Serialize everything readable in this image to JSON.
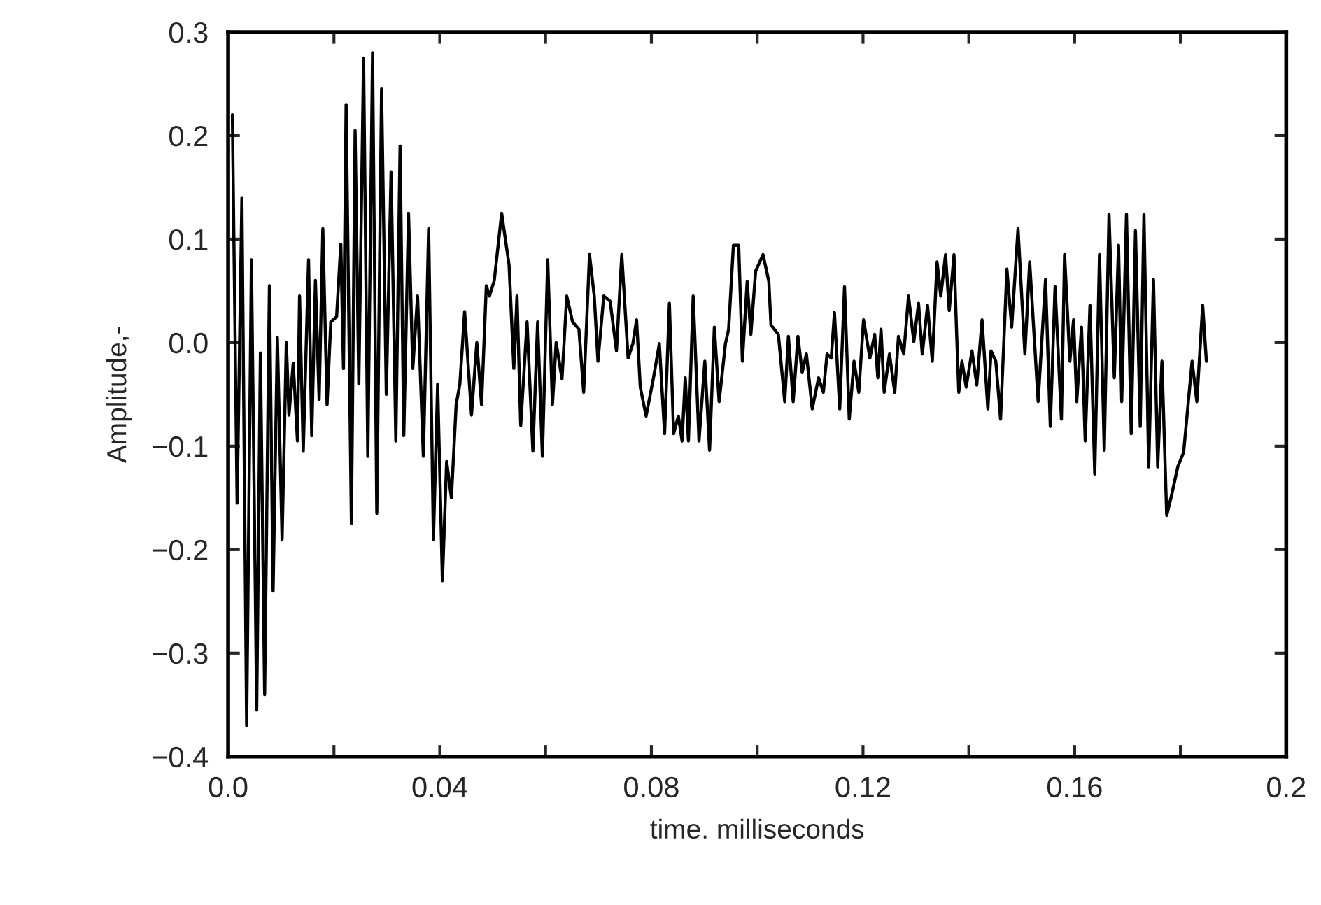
{
  "chart_data": {
    "type": "line",
    "xlabel": "time. milliseconds",
    "ylabel": "Amplitude,-",
    "xlim": [
      0,
      0.2
    ],
    "ylim": [
      -0.4,
      0.3
    ],
    "xticks": [
      {
        "value": 0,
        "label": "0.0"
      },
      {
        "value": 0.02,
        "label": null
      },
      {
        "value": 0.04,
        "label": "0.04"
      },
      {
        "value": 0.06,
        "label": null
      },
      {
        "value": 0.08,
        "label": "0.08"
      },
      {
        "value": 0.1,
        "label": null
      },
      {
        "value": 0.12,
        "label": "0.12"
      },
      {
        "value": 0.14,
        "label": null
      },
      {
        "value": 0.16,
        "label": "0.16"
      },
      {
        "value": 0.18,
        "label": null
      },
      {
        "value": 0.2,
        "label": "0.2"
      }
    ],
    "yticks": [
      {
        "value": -0.4,
        "label": "−0.4"
      },
      {
        "value": -0.3,
        "label": "−0.3"
      },
      {
        "value": -0.2,
        "label": "−0.2"
      },
      {
        "value": -0.1,
        "label": "−0.1"
      },
      {
        "value": 0,
        "label": "0.0"
      },
      0.1,
      0.2,
      0.3
    ],
    "grid": false,
    "marker": "none",
    "line_style": "solid",
    "series": [
      {
        "color": "#000000",
        "x": [
          0.0008,
          0.0017,
          0.0026,
          0.0035,
          0.0044,
          0.0054,
          0.0061,
          0.0069,
          0.0078,
          0.0085,
          0.0093,
          0.0102,
          0.011,
          0.0115,
          0.0123,
          0.0131,
          0.0135,
          0.0142,
          0.0152,
          0.0158,
          0.0165,
          0.0172,
          0.0179,
          0.0187,
          0.0194,
          0.0205,
          0.0213,
          0.0218,
          0.0223,
          0.0233,
          0.024,
          0.0247,
          0.0256,
          0.0264,
          0.0273,
          0.0281,
          0.029,
          0.0299,
          0.0308,
          0.0317,
          0.0325,
          0.0332,
          0.0341,
          0.0349,
          0.0358,
          0.0369,
          0.0379,
          0.0388,
          0.0396,
          0.0405,
          0.0413,
          0.0422,
          0.0431,
          0.0438,
          0.0447,
          0.046,
          0.047,
          0.0479,
          0.0488,
          0.0494,
          0.0503,
          0.0517,
          0.0531,
          0.054,
          0.0546,
          0.0553,
          0.0565,
          0.0576,
          0.0585,
          0.0594,
          0.0604,
          0.0613,
          0.062,
          0.0631,
          0.064,
          0.0651,
          0.0663,
          0.0672,
          0.0683,
          0.0692,
          0.0699,
          0.071,
          0.0722,
          0.0734,
          0.0744,
          0.0756,
          0.0765,
          0.0772,
          0.0779,
          0.079,
          0.0804,
          0.0815,
          0.0825,
          0.0834,
          0.0842,
          0.0851,
          0.0858,
          0.0864,
          0.087,
          0.0879,
          0.089,
          0.0901,
          0.091,
          0.0919,
          0.0928,
          0.094,
          0.0946,
          0.0955,
          0.0965,
          0.0972,
          0.0981,
          0.0988,
          0.0997,
          0.1011,
          0.1022,
          0.1026,
          0.104,
          0.1052,
          0.1059,
          0.1068,
          0.1077,
          0.1085,
          0.1093,
          0.1104,
          0.1116,
          0.1125,
          0.1132,
          0.114,
          0.1146,
          0.1156,
          0.1165,
          0.1174,
          0.1183,
          0.1192,
          0.1201,
          0.1213,
          0.1222,
          0.1228,
          0.1234,
          0.124,
          0.125,
          0.126,
          0.1267,
          0.1277,
          0.1286,
          0.1296,
          0.1305,
          0.1312,
          0.1322,
          0.1331,
          0.134,
          0.1347,
          0.1356,
          0.1363,
          0.1372,
          0.1377,
          0.1381,
          0.1387,
          0.1395,
          0.1406,
          0.1415,
          0.1425,
          0.1436,
          0.1442,
          0.1451,
          0.146,
          0.1472,
          0.1481,
          0.1493,
          0.1506,
          0.1515,
          0.1531,
          0.1545,
          0.1554,
          0.1563,
          0.1575,
          0.1581,
          0.1591,
          0.1598,
          0.1604,
          0.1613,
          0.162,
          0.1629,
          0.1638,
          0.1647,
          0.1656,
          0.1665,
          0.1675,
          0.1683,
          0.1689,
          0.1698,
          0.1707,
          0.1715,
          0.1724,
          0.1731,
          0.174,
          0.1749,
          0.1757,
          0.1765,
          0.1774,
          0.1783,
          0.1795,
          0.1806,
          0.1822,
          0.1831,
          0.1842,
          0.1849
        ],
        "values": [
          0.22,
          -0.155,
          0.14,
          -0.37,
          0.08,
          -0.355,
          -0.01,
          -0.34,
          0.055,
          -0.24,
          0.005,
          -0.19,
          0.0,
          -0.07,
          -0.02,
          -0.095,
          0.045,
          -0.105,
          0.08,
          -0.09,
          0.06,
          -0.055,
          0.11,
          -0.06,
          0.02,
          0.025,
          0.095,
          -0.025,
          0.23,
          -0.175,
          0.205,
          -0.04,
          0.275,
          -0.11,
          0.28,
          -0.165,
          0.245,
          -0.05,
          0.165,
          -0.095,
          0.19,
          -0.09,
          0.125,
          -0.025,
          0.045,
          -0.11,
          0.11,
          -0.19,
          -0.04,
          -0.23,
          -0.115,
          -0.15,
          -0.06,
          -0.04,
          0.03,
          -0.07,
          0.0,
          -0.06,
          0.055,
          0.045,
          0.06,
          0.125,
          0.075,
          -0.025,
          0.045,
          -0.08,
          0.02,
          -0.105,
          0.02,
          -0.11,
          0.08,
          -0.06,
          0.0,
          -0.035,
          0.045,
          0.02,
          0.013,
          -0.048,
          0.085,
          0.045,
          -0.018,
          0.045,
          0.04,
          -0.008,
          0.085,
          -0.015,
          -0.001,
          0.022,
          -0.043,
          -0.071,
          -0.034,
          -0.001,
          -0.088,
          0.038,
          -0.088,
          -0.071,
          -0.095,
          -0.034,
          -0.095,
          0.045,
          -0.095,
          -0.018,
          -0.104,
          0.015,
          -0.057,
          -0.001,
          0.013,
          0.094,
          0.094,
          -0.018,
          0.059,
          0.008,
          0.069,
          0.085,
          0.059,
          0.017,
          0.008,
          -0.057,
          0.006,
          -0.057,
          0.006,
          -0.029,
          -0.011,
          -0.064,
          -0.034,
          -0.048,
          -0.011,
          -0.015,
          0.029,
          -0.064,
          0.054,
          -0.074,
          -0.018,
          -0.048,
          0.022,
          -0.015,
          0.008,
          -0.034,
          0.013,
          -0.048,
          -0.011,
          -0.048,
          0.006,
          -0.011,
          0.045,
          0.001,
          0.038,
          -0.011,
          0.036,
          -0.018,
          0.078,
          0.045,
          0.085,
          0.031,
          0.085,
          0.008,
          -0.048,
          -0.018,
          -0.043,
          -0.008,
          -0.041,
          0.022,
          -0.064,
          -0.008,
          -0.018,
          -0.074,
          0.071,
          0.015,
          0.11,
          -0.011,
          0.078,
          -0.057,
          0.061,
          -0.081,
          0.054,
          -0.074,
          0.085,
          -0.018,
          0.022,
          -0.057,
          0.015,
          -0.095,
          0.036,
          -0.127,
          0.085,
          -0.104,
          0.124,
          -0.034,
          0.094,
          -0.057,
          0.124,
          -0.088,
          0.108,
          -0.081,
          0.124,
          -0.12,
          0.061,
          -0.12,
          -0.018,
          -0.167,
          -0.148,
          -0.12,
          -0.106,
          -0.018,
          -0.057,
          0.036,
          -0.018
        ]
      }
    ]
  }
}
